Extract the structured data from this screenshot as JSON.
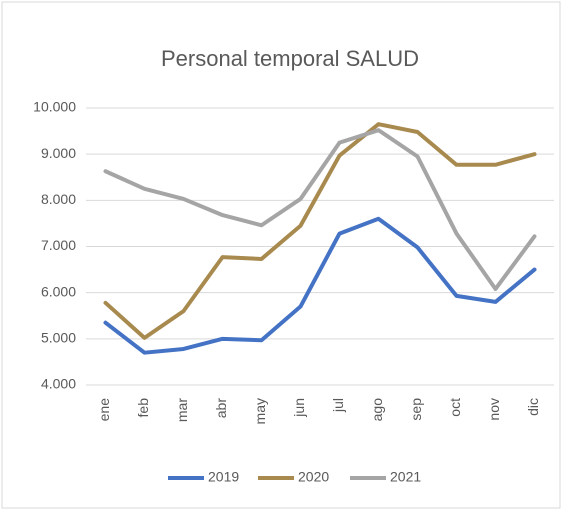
{
  "chart_data": {
    "type": "line",
    "title": "Personal temporal SALUD",
    "categories": [
      "ene",
      "feb",
      "mar",
      "abr",
      "may",
      "jun",
      "jul",
      "ago",
      "sep",
      "oct",
      "nov",
      "dic"
    ],
    "series": [
      {
        "name": "2019",
        "color": "#4472c4",
        "values": [
          5350,
          4700,
          4780,
          5000,
          4970,
          5700,
          7280,
          7600,
          6980,
          5930,
          5800,
          6500
        ]
      },
      {
        "name": "2020",
        "color": "#a88a4f",
        "values": [
          5780,
          5020,
          5600,
          6770,
          6730,
          7450,
          8970,
          9650,
          9480,
          8770,
          8770,
          9000
        ]
      },
      {
        "name": "2021",
        "color": "#a5a5a5",
        "values": [
          8630,
          8250,
          8030,
          7680,
          7460,
          8030,
          9250,
          9520,
          8950,
          7280,
          6080,
          7220
        ]
      }
    ],
    "ylim": [
      4000,
      10000
    ],
    "yticks": [
      {
        "value": 4000,
        "label": "4.000"
      },
      {
        "value": 5000,
        "label": "5.000"
      },
      {
        "value": 6000,
        "label": "6.000"
      },
      {
        "value": 7000,
        "label": "7.000"
      },
      {
        "value": 8000,
        "label": "8.000"
      },
      {
        "value": 9000,
        "label": "9.000"
      },
      {
        "value": 10000,
        "label": "10.000"
      }
    ],
    "grid": true,
    "legend": "bottom"
  }
}
